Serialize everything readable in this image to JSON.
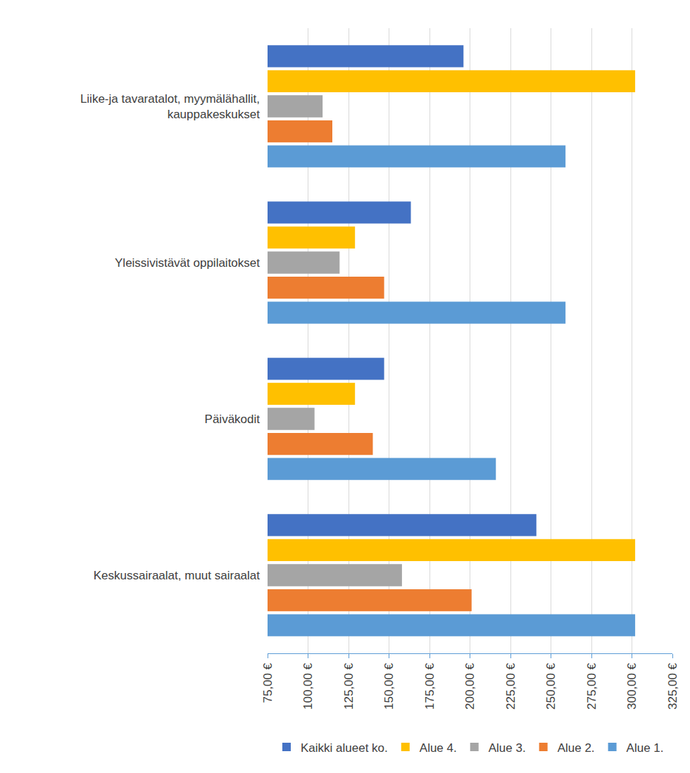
{
  "chart_data": {
    "type": "bar",
    "orientation": "horizontal",
    "categories": [
      "Keskussairaalat, muut sairaalat",
      "Päiväkodit",
      "Yleissivistävät oppilaitokset",
      "Liike-ja tavaratalot, myymälähallit, kauppakeskukset"
    ],
    "series": [
      {
        "name": "Kaikki alueet ko.",
        "color": "#4472c4",
        "values": [
          241,
          147,
          163.5,
          196
        ]
      },
      {
        "name": "Alue 4.",
        "color": "#ffc000",
        "values": [
          302,
          129,
          129,
          302
        ]
      },
      {
        "name": "Alue 3.",
        "color": "#a5a5a5",
        "values": [
          158,
          104,
          119.5,
          109
        ]
      },
      {
        "name": "Alue 2.",
        "color": "#ed7d31",
        "values": [
          201,
          140,
          147,
          115
        ]
      },
      {
        "name": "Alue 1.",
        "color": "#5b9bd5",
        "values": [
          302,
          216,
          259,
          259
        ]
      }
    ],
    "xlim": [
      75,
      325
    ],
    "xticks": [
      {
        "value": 75,
        "label": "75,00 €"
      },
      {
        "value": 100,
        "label": "100,00 €"
      },
      {
        "value": 125,
        "label": "125,00 €"
      },
      {
        "value": 150,
        "label": "150,00 €"
      },
      {
        "value": 175,
        "label": "175,00 €"
      },
      {
        "value": 200,
        "label": "200,00 €"
      },
      {
        "value": 225,
        "label": "225,00 €"
      },
      {
        "value": 250,
        "label": "250,00 €"
      },
      {
        "value": 275,
        "label": "275,00 €"
      },
      {
        "value": 300,
        "label": "300,00 €"
      },
      {
        "value": 325,
        "label": "325,00 €"
      }
    ],
    "grid": true,
    "legend": "bottom"
  }
}
